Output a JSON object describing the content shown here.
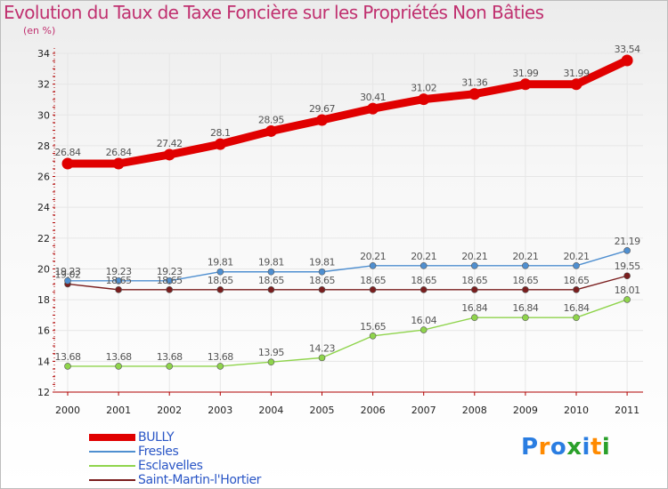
{
  "colors": {
    "title": "#c0306f",
    "legend_text": "#2a56c6",
    "axis": "#b00000"
  },
  "logo": {
    "text": "Proxiti",
    "letters": [
      "P",
      "r",
      "o",
      "x",
      "i",
      "t",
      "i"
    ],
    "letter_colors": [
      "#2a7de1",
      "#ff8a00",
      "#2a7de1",
      "#2aa02a",
      "#2a7de1",
      "#ff8a00",
      "#2aa02a"
    ]
  },
  "chart_data": {
    "type": "line",
    "title": "Evolution du Taux de Taxe Foncière sur les Propriétés Non Bâties",
    "ylabel": "(en %)",
    "xlabel": "",
    "x": [
      "2000",
      "2001",
      "2002",
      "2003",
      "2004",
      "2005",
      "2006",
      "2007",
      "2008",
      "2009",
      "2010",
      "2011"
    ],
    "ylim": [
      12,
      34
    ],
    "yticks": [
      12,
      14,
      16,
      18,
      20,
      22,
      24,
      26,
      28,
      30,
      32,
      34
    ],
    "legend_position": "bottom-left",
    "series": [
      {
        "name": "BULLY",
        "color": "#e00000",
        "values": [
          26.84,
          26.84,
          27.42,
          28.1,
          28.95,
          29.67,
          30.41,
          31.02,
          31.36,
          31.99,
          31.99,
          33.54
        ],
        "labels": [
          "26.84",
          "26.84",
          "27.42",
          "28.1",
          "28.95",
          "29.67",
          "30.41",
          "31.02",
          "31.36",
          "31.99",
          "31.99",
          "33.54"
        ]
      },
      {
        "name": "Fresles",
        "color": "#4f8fd0",
        "values": [
          19.23,
          19.23,
          19.23,
          19.81,
          19.81,
          19.81,
          20.21,
          20.21,
          20.21,
          20.21,
          20.21,
          21.19
        ],
        "labels": [
          "19.23",
          "19.23",
          "19.23",
          "19.81",
          "19.81",
          "19.81",
          "20.21",
          "20.21",
          "20.21",
          "20.21",
          "20.21",
          "21.19"
        ]
      },
      {
        "name": "Esclavelles",
        "color": "#8fd44c",
        "values": [
          13.68,
          13.68,
          13.68,
          13.68,
          13.95,
          14.23,
          15.65,
          16.04,
          16.84,
          16.84,
          16.84,
          18.01
        ],
        "labels": [
          "13.68",
          "13.68",
          "13.68",
          "13.68",
          "13.95",
          "14.23",
          "15.65",
          "16.04",
          "16.84",
          "16.84",
          "16.84",
          "18.01"
        ]
      },
      {
        "name": "Saint-Martin-l'Hortier",
        "color": "#7a1e1e",
        "values": [
          19.02,
          18.65,
          18.65,
          18.65,
          18.65,
          18.65,
          18.65,
          18.65,
          18.65,
          18.65,
          18.65,
          19.55
        ],
        "labels": [
          "19.02",
          "18.65",
          "18.65",
          "18.65",
          "18.65",
          "18.65",
          "18.65",
          "18.65",
          "18.65",
          "18.65",
          "18.65",
          "19.55"
        ]
      }
    ]
  }
}
